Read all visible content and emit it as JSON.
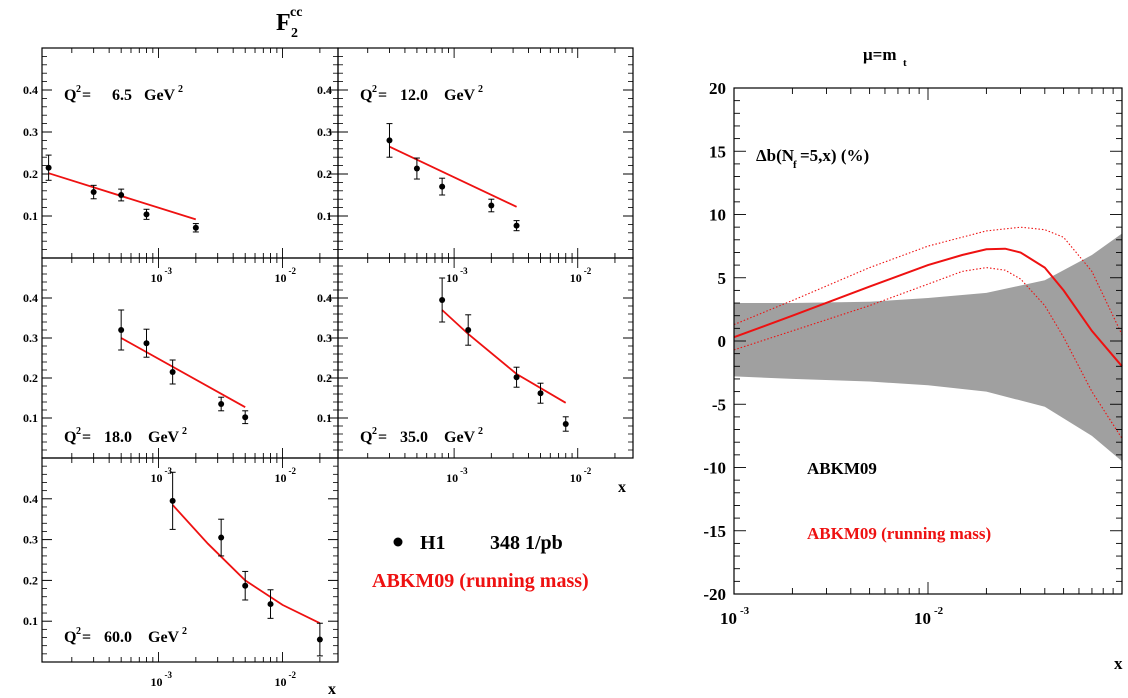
{
  "left_figure": {
    "title_base": "F",
    "title_sub": "2",
    "title_sup": "cc",
    "x_axis_label": "x",
    "y_ticks": [
      "0.1",
      "0.2",
      "0.3",
      "0.4"
    ],
    "x_tick_base": "10",
    "x_ticks": [
      "-3",
      "-2"
    ],
    "q2_prefix": "Q",
    "q2_sup": "2",
    "q2_eq": "=",
    "unit_base": "GeV",
    "unit_sup": "2",
    "legend": {
      "marker_label": "H1",
      "lumi": "348 1/pb",
      "theory": "ABKM09 (running mass)",
      "theory_color": "#ee1111",
      "data_color": "#000000"
    }
  },
  "right_figure": {
    "title_base": "μ=m",
    "title_sub": "t",
    "ylabel_text": "Δb(N",
    "ylabel_sub": "f",
    "ylabel_rest": "=5,x) (%)",
    "xlabel": "x",
    "y_ticks": [
      "20",
      "15",
      "10",
      "5",
      "0",
      "-5",
      "-10",
      "-15",
      "-20"
    ],
    "x_tick_base": "10",
    "x_ticks": [
      "-3",
      "-2"
    ],
    "band_label": "ABKM09",
    "curve_label": "ABKM09 (running mass)",
    "band_color": "#a0a0a0",
    "curve_color": "#ee1111"
  },
  "chart_data": [
    {
      "type": "scatter",
      "panel": 1,
      "q2": "6.5",
      "x_scale": "log",
      "ylim": [
        0,
        0.5
      ],
      "series": [
        {
          "name": "H1",
          "x": [
            0.00013,
            0.0003,
            0.0005,
            0.0008,
            0.002
          ],
          "y": [
            0.215,
            0.157,
            0.15,
            0.104,
            0.072
          ],
          "err": [
            0.03,
            0.016,
            0.014,
            0.012,
            0.01
          ]
        },
        {
          "name": "ABKM09 (running mass)",
          "x": [
            0.00013,
            0.002
          ],
          "y": [
            0.202,
            0.092
          ]
        }
      ]
    },
    {
      "type": "scatter",
      "panel": 2,
      "q2": "12.0",
      "x_scale": "log",
      "ylim": [
        0,
        0.5
      ],
      "series": [
        {
          "name": "H1",
          "x": [
            0.0003,
            0.0005,
            0.0008,
            0.002,
            0.0032
          ],
          "y": [
            0.28,
            0.213,
            0.17,
            0.125,
            0.077
          ],
          "err": [
            0.04,
            0.025,
            0.02,
            0.015,
            0.012
          ]
        },
        {
          "name": "ABKM09 (running mass)",
          "x": [
            0.0003,
            0.0032
          ],
          "y": [
            0.265,
            0.122
          ]
        }
      ]
    },
    {
      "type": "scatter",
      "panel": 3,
      "q2": "18.0",
      "x_scale": "log",
      "ylim": [
        0,
        0.5
      ],
      "series": [
        {
          "name": "H1",
          "x": [
            0.0005,
            0.0008,
            0.0013,
            0.0032,
            0.005
          ],
          "y": [
            0.32,
            0.287,
            0.215,
            0.135,
            0.102
          ],
          "err": [
            0.05,
            0.035,
            0.03,
            0.017,
            0.016
          ]
        },
        {
          "name": "ABKM09 (running mass)",
          "x": [
            0.0005,
            0.005
          ],
          "y": [
            0.3,
            0.127
          ]
        }
      ]
    },
    {
      "type": "scatter",
      "panel": 4,
      "q2": "35.0",
      "x_scale": "log",
      "ylim": [
        0,
        0.5
      ],
      "series": [
        {
          "name": "H1",
          "x": [
            0.0008,
            0.0013,
            0.0032,
            0.005,
            0.008
          ],
          "y": [
            0.395,
            0.32,
            0.202,
            0.162,
            0.085
          ],
          "err": [
            0.055,
            0.038,
            0.025,
            0.025,
            0.018
          ]
        },
        {
          "name": "ABKM09 (running mass)",
          "x": [
            0.0008,
            0.0013,
            0.0032,
            0.008
          ],
          "y": [
            0.37,
            0.31,
            0.21,
            0.138
          ]
        }
      ]
    },
    {
      "type": "scatter",
      "panel": 5,
      "q2": "60.0",
      "x_scale": "log",
      "ylim": [
        0,
        0.5
      ],
      "series": [
        {
          "name": "H1",
          "x": [
            0.0013,
            0.0032,
            0.005,
            0.008,
            0.02
          ],
          "y": [
            0.395,
            0.305,
            0.187,
            0.142,
            0.055
          ],
          "err": [
            0.07,
            0.045,
            0.035,
            0.035,
            0.04
          ]
        },
        {
          "name": "ABKM09 (running mass)",
          "x": [
            0.0013,
            0.0025,
            0.005,
            0.01,
            0.02
          ],
          "y": [
            0.385,
            0.29,
            0.2,
            0.14,
            0.095
          ]
        }
      ]
    },
    {
      "type": "line",
      "panel": "right",
      "x_scale": "log",
      "ylim": [
        -20,
        20
      ],
      "series": [
        {
          "name": "ABKM09",
          "kind": "band",
          "x": [
            0.001,
            0.002,
            0.005,
            0.01,
            0.02,
            0.04,
            0.07,
            0.1
          ],
          "y_upper": [
            3.0,
            3.0,
            3.1,
            3.4,
            3.8,
            4.8,
            6.8,
            8.5
          ],
          "y_lower": [
            -2.8,
            -3.0,
            -3.2,
            -3.5,
            -4.0,
            -5.2,
            -7.5,
            -9.5
          ]
        },
        {
          "name": "ABKM09 (running mass)",
          "kind": "central",
          "x": [
            0.001,
            0.002,
            0.005,
            0.01,
            0.015,
            0.02,
            0.025,
            0.03,
            0.04,
            0.05,
            0.07,
            0.1
          ],
          "y": [
            0.3,
            2.0,
            4.3,
            6.0,
            6.8,
            7.25,
            7.3,
            7.0,
            5.8,
            4.0,
            0.8,
            -2.0
          ]
        },
        {
          "name": "ABKM09 (running mass)",
          "kind": "upper",
          "x": [
            0.001,
            0.002,
            0.005,
            0.01,
            0.02,
            0.03,
            0.04,
            0.05,
            0.07,
            0.1
          ],
          "y": [
            1.3,
            3.2,
            5.8,
            7.5,
            8.7,
            9.0,
            8.8,
            8.2,
            5.5,
            0.5
          ]
        },
        {
          "name": "ABKM09 (running mass)",
          "kind": "lower",
          "x": [
            0.001,
            0.002,
            0.005,
            0.01,
            0.015,
            0.02,
            0.025,
            0.03,
            0.04,
            0.05,
            0.07,
            0.1
          ],
          "y": [
            -0.7,
            0.8,
            2.8,
            4.5,
            5.5,
            5.8,
            5.6,
            4.9,
            2.8,
            0.3,
            -4.0,
            -7.7
          ]
        }
      ]
    }
  ]
}
